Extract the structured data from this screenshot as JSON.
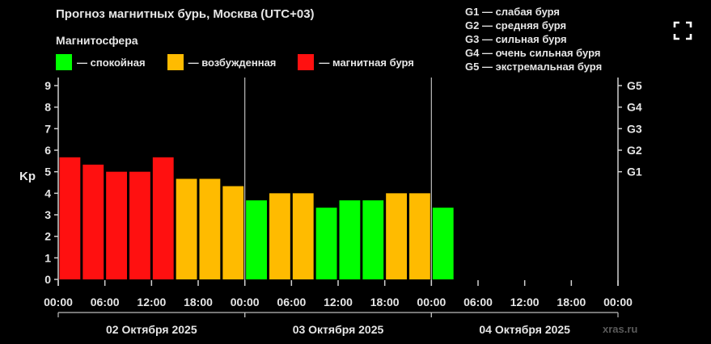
{
  "title": "Прогноз магнитных бурь, Москва (UTC+03)",
  "subtitle": "Магнитосфера",
  "legend": [
    {
      "label": "— спокойная",
      "color": "#00ff00"
    },
    {
      "label": "— возбужденная",
      "color": "#ffbb00"
    },
    {
      "label": "— магнитная буря",
      "color": "#ff1010"
    }
  ],
  "storm_levels": [
    "G1 — слабая буря",
    "G2 — средняя буря",
    "G3 — сильная буря",
    "G4 — очень сильная буря",
    "G5 — экстремальная буря"
  ],
  "watermark": "xras.ru",
  "fullscreen_icon": "fullscreen-icon",
  "chart_data": {
    "type": "bar",
    "title": "Прогноз магнитных бурь, Москва (UTC+03)",
    "ylabel": "Kp",
    "ylim": [
      0,
      9
    ],
    "yticks": [
      "0",
      "1",
      "2",
      "3",
      "4",
      "5",
      "6",
      "7",
      "8",
      "9"
    ],
    "right_ticks": [
      {
        "kp": 5,
        "label": "G1"
      },
      {
        "kp": 6,
        "label": "G2"
      },
      {
        "kp": 7,
        "label": "G3"
      },
      {
        "kp": 8,
        "label": "G4"
      },
      {
        "kp": 9,
        "label": "G5"
      }
    ],
    "x_tick_labels": [
      "00:00",
      "06:00",
      "12:00",
      "18:00",
      "00:00",
      "06:00",
      "12:00",
      "18:00",
      "00:00",
      "06:00",
      "12:00",
      "18:00",
      "00:00"
    ],
    "days": [
      "02 Октября 2025",
      "03 Октября 2025",
      "04 Октября 2025"
    ],
    "interval_hours": 3,
    "values": [
      5.67,
      5.33,
      5.0,
      5.0,
      5.67,
      4.67,
      4.67,
      4.33,
      3.67,
      4.0,
      4.0,
      3.33,
      3.67,
      3.67,
      4.0,
      4.0,
      3.33
    ],
    "colors": {
      "quiet": "#00ff00",
      "active": "#ffbb00",
      "storm": "#ff1010"
    },
    "grid": false
  }
}
